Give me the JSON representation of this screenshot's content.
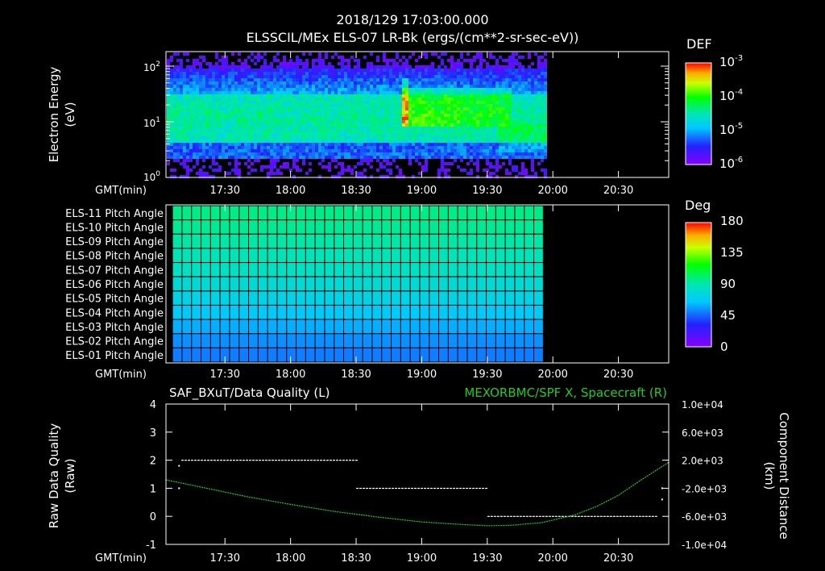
{
  "header": {
    "timestamp": "2018/129 17:03:00.000",
    "subtitle": "ELSSCIL/MEx ELS-07 LR-Bk  (ergs/(cm**2-sr-sec-eV))"
  },
  "time_axis": {
    "label": "GMT(min)",
    "ticks": [
      "17:30",
      "18:00",
      "18:30",
      "19:00",
      "19:30",
      "20:00",
      "20:30"
    ],
    "tick_minutes": [
      30,
      60,
      90,
      120,
      150,
      180,
      210
    ],
    "range_minutes": [
      3,
      233
    ]
  },
  "colors": {
    "axis": "#ffffff",
    "quality_trace": "#ffffff",
    "spacecraft_trace": "#22cc22",
    "spacecraft_label": "#22cc22"
  },
  "panel_energy": {
    "ylabel_line1": "Electron Energy",
    "ylabel_line2": "(eV)",
    "yticks": [
      "10",
      "10",
      "10"
    ],
    "yticks_exp": [
      "0",
      "1",
      "2"
    ],
    "colorbar": {
      "title": "DEF",
      "labels": [
        "10",
        "10",
        "10",
        "10"
      ],
      "labels_exp": [
        "-6",
        "-5",
        "-4",
        "-3"
      ]
    },
    "data_end_minute": 176,
    "event_minute": 110
  },
  "panel_pitch": {
    "channels": [
      {
        "label": "ELS-11 Pitch Angle",
        "value": 97
      },
      {
        "label": "ELS-10 Pitch Angle",
        "value": 95
      },
      {
        "label": "ELS-09 Pitch Angle",
        "value": 92
      },
      {
        "label": "ELS-08 Pitch Angle",
        "value": 89
      },
      {
        "label": "ELS-07 Pitch Angle",
        "value": 85
      },
      {
        "label": "ELS-06 Pitch Angle",
        "value": 80
      },
      {
        "label": "ELS-05 Pitch Angle",
        "value": 74
      },
      {
        "label": "ELS-04 Pitch Angle",
        "value": 67
      },
      {
        "label": "ELS-03 Pitch Angle",
        "value": 60
      },
      {
        "label": "ELS-02 Pitch Angle",
        "value": 54
      },
      {
        "label": "ELS-01 Pitch Angle",
        "value": 50
      }
    ],
    "colorbar": {
      "title": "Deg",
      "labels": [
        "0",
        "45",
        "90",
        "135",
        "180"
      ],
      "range": [
        0,
        180
      ]
    },
    "data_start_minute": 6,
    "data_end_minute": 176
  },
  "chart_data": {
    "type": "line",
    "left_title": "SAF_BXuT/Data Quality (L)",
    "right_title": "MEXORBMC/SPF X, Spacecraft (R)",
    "ylabel_left_line1": "Raw Data Quality",
    "ylabel_left_line2": "(Raw)",
    "ylabel_right_line1": "Component Distance",
    "ylabel_right_line2": "(km)",
    "ylim_left": [
      -1,
      4
    ],
    "yticks_left": [
      "4",
      "3",
      "2",
      "1",
      "0",
      "-1"
    ],
    "ylim_right": [
      -10000,
      10000
    ],
    "yticks_right": [
      "1.0e+04",
      "6.0e+03",
      "2.0e+03",
      "-2.0e+03",
      "-6.0e+03",
      "-1.0e+04"
    ],
    "series": [
      {
        "name": "SAF_BXuT/Data Quality",
        "axis": "left",
        "segments": [
          {
            "x": [
              10,
              90
            ],
            "y": 2
          },
          {
            "x": [
              90,
              150
            ],
            "y": 1
          },
          {
            "x": [
              150,
              228
            ],
            "y": 0
          }
        ],
        "isolated_points": [
          {
            "x": 9,
            "y": 1
          },
          {
            "x": 9,
            "y": 1.8
          },
          {
            "x": 230,
            "y": 1
          },
          {
            "x": 230,
            "y": 0.6
          }
        ]
      },
      {
        "name": "MEXORBMC/SPF X, Spacecraft",
        "axis": "right",
        "x": [
          3,
          20,
          40,
          60,
          80,
          100,
          120,
          140,
          150,
          160,
          175,
          190,
          200,
          210,
          220,
          233
        ],
        "y": [
          -800,
          -1900,
          -3200,
          -4300,
          -5300,
          -6100,
          -6800,
          -7200,
          -7350,
          -7300,
          -6900,
          -5800,
          -4600,
          -3000,
          -900,
          1700
        ]
      }
    ]
  }
}
